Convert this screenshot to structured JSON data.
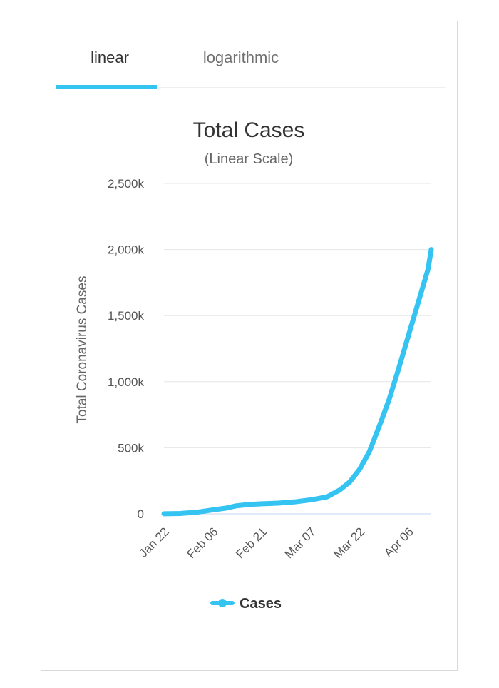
{
  "tabs": [
    {
      "label": "linear",
      "active": true
    },
    {
      "label": "logarithmic",
      "active": false
    }
  ],
  "accent_color": "#35c4f2",
  "chart_data": {
    "type": "line",
    "title": "Total Cases",
    "subtitle": "(Linear Scale)",
    "xlabel": "",
    "ylabel": "Total Coronavirus Cases",
    "ylim": [
      0,
      2500000
    ],
    "y_ticks": [
      0,
      500000,
      1000000,
      1500000,
      2000000,
      2500000
    ],
    "y_tick_labels": [
      "0",
      "500k",
      "1,000k",
      "1,500k",
      "2,000k",
      "2,500k"
    ],
    "x_tick_labels": [
      "Jan 22",
      "Feb 06",
      "Feb 21",
      "Mar 07",
      "Mar 22",
      "Apr 06"
    ],
    "x_range": [
      "Jan 22",
      "Apr 13"
    ],
    "grid": true,
    "legend": "bottom-center",
    "series": [
      {
        "name": "Cases",
        "color": "#35c4f2",
        "x": [
          "Jan 22",
          "Jan 27",
          "Feb 01",
          "Feb 06",
          "Feb 10",
          "Feb 13",
          "Feb 17",
          "Feb 21",
          "Feb 26",
          "Mar 02",
          "Mar 07",
          "Mar 12",
          "Mar 16",
          "Mar 19",
          "Mar 22",
          "Mar 25",
          "Mar 28",
          "Mar 31",
          "Apr 03",
          "Apr 06",
          "Apr 09",
          "Apr 12",
          "Apr 13"
        ],
        "values": [
          555,
          2900,
          12000,
          30000,
          43000,
          60000,
          71000,
          76000,
          81000,
          90000,
          106000,
          128000,
          182000,
          242000,
          337000,
          470000,
          660000,
          860000,
          1100000,
          1350000,
          1600000,
          1850000,
          2000000
        ]
      }
    ]
  }
}
